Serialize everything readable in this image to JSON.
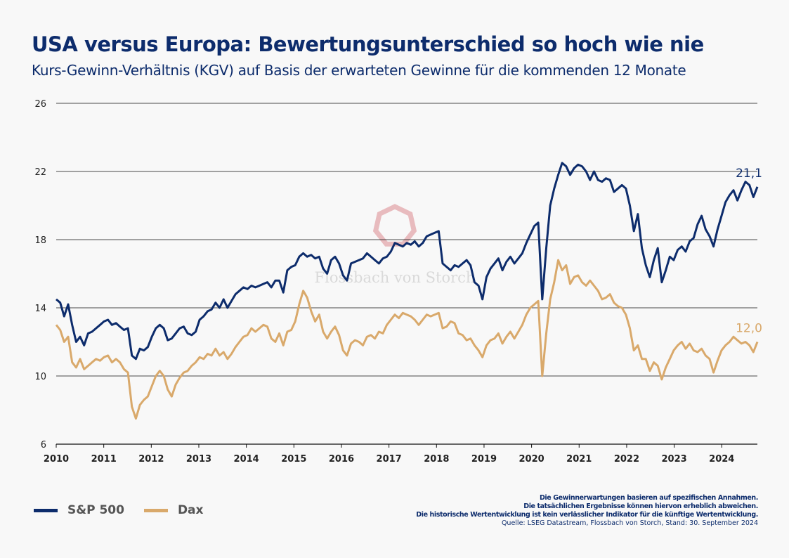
{
  "title": "USA versus Europa: Bewertungsunterschied so hoch wie nie",
  "subtitle": "Kurs-Gewinn-Verhältnis (KGV) auf Basis der erwarteten Gewinne für die kommenden 12 Monate",
  "watermark": "Flossbach von Storch",
  "notes": [
    "Die Gewinnerwartungen basieren auf spezifischen Annahmen.",
    "Die tatsächlichen Ergebnisse können hiervon erheblich abweichen.",
    "Die historische Wertentwicklung ist kein verlässlicher Indikator für die künftige Wertentwicklung."
  ],
  "source": "Quelle: LSEG Datastream, Flossbach von Storch, Stand: 30. September 2024",
  "colors": {
    "sp500": "#0d2c6c",
    "dax": "#d9a96b",
    "watermark": "#e3a7ab"
  },
  "chart_data": {
    "type": "line",
    "title": "USA versus Europa: Bewertungsunterschied so hoch wie nie",
    "xlabel": "",
    "ylabel": "",
    "x_start": "2010-01",
    "x_frequency": "monthly",
    "x_end": "2024-09",
    "xlim": [
      2010,
      2024.75
    ],
    "ylim": [
      6,
      26
    ],
    "yticks": [
      "6",
      "10",
      "14",
      "18",
      "22",
      "26"
    ],
    "ytick_values": [
      6,
      10,
      14,
      18,
      22,
      26
    ],
    "xticks": [
      "2010",
      "2011",
      "2012",
      "2013",
      "2014",
      "2015",
      "2016",
      "2017",
      "2018",
      "2019",
      "2020",
      "2021",
      "2022",
      "2023",
      "2024"
    ],
    "grid": "horizontal",
    "legend_placement": "bottom-left",
    "series": [
      {
        "name": "S&P 500",
        "end_label": "21,1",
        "values": [
          14.5,
          14.3,
          13.5,
          14.2,
          13.0,
          12.0,
          12.3,
          11.8,
          12.5,
          12.6,
          12.8,
          13.0,
          13.2,
          13.3,
          13.0,
          13.1,
          12.9,
          12.7,
          12.8,
          11.2,
          11.0,
          11.6,
          11.5,
          11.7,
          12.3,
          12.8,
          13.0,
          12.8,
          12.1,
          12.2,
          12.5,
          12.8,
          12.9,
          12.5,
          12.4,
          12.6,
          13.3,
          13.5,
          13.8,
          13.9,
          14.3,
          14.0,
          14.5,
          14.0,
          14.4,
          14.8,
          15.0,
          15.2,
          15.1,
          15.3,
          15.2,
          15.3,
          15.4,
          15.5,
          15.2,
          15.6,
          15.6,
          14.9,
          16.2,
          16.4,
          16.5,
          17.0,
          17.2,
          17.0,
          17.1,
          16.9,
          17.0,
          16.3,
          16.0,
          16.8,
          17.0,
          16.6,
          15.9,
          15.6,
          16.6,
          16.7,
          16.8,
          16.9,
          17.2,
          17.0,
          16.8,
          16.6,
          16.9,
          17.0,
          17.3,
          17.8,
          17.7,
          17.6,
          17.8,
          17.7,
          17.9,
          17.6,
          17.8,
          18.2,
          18.3,
          18.4,
          18.5,
          16.6,
          16.4,
          16.2,
          16.5,
          16.4,
          16.6,
          16.8,
          16.5,
          15.5,
          15.3,
          14.5,
          15.8,
          16.3,
          16.6,
          16.9,
          16.2,
          16.7,
          17.0,
          16.6,
          16.9,
          17.2,
          17.8,
          18.3,
          18.8,
          19.0,
          14.5,
          17.5,
          20.0,
          21.0,
          21.8,
          22.5,
          22.3,
          21.8,
          22.2,
          22.4,
          22.3,
          22.0,
          21.5,
          22.0,
          21.5,
          21.4,
          21.6,
          21.5,
          20.8,
          21.0,
          21.2,
          21.0,
          20.0,
          18.5,
          19.5,
          17.5,
          16.5,
          15.8,
          16.8,
          17.5,
          15.5,
          16.2,
          17.0,
          16.8,
          17.4,
          17.6,
          17.3,
          17.9,
          18.1,
          18.9,
          19.4,
          18.6,
          18.2,
          17.6,
          18.6,
          19.4,
          20.2,
          20.6,
          20.9,
          20.3,
          20.9,
          21.4,
          21.2,
          20.5,
          21.1
        ]
      },
      {
        "name": "Dax",
        "end_label": "12,0",
        "values": [
          13.0,
          12.7,
          12.0,
          12.3,
          10.8,
          10.5,
          11.0,
          10.4,
          10.6,
          10.8,
          11.0,
          10.9,
          11.1,
          11.2,
          10.8,
          11.0,
          10.8,
          10.4,
          10.2,
          8.2,
          7.5,
          8.3,
          8.6,
          8.8,
          9.4,
          10.0,
          10.3,
          10.0,
          9.2,
          8.8,
          9.5,
          9.9,
          10.2,
          10.3,
          10.6,
          10.8,
          11.1,
          11.0,
          11.3,
          11.2,
          11.6,
          11.2,
          11.4,
          11.0,
          11.3,
          11.7,
          12.0,
          12.3,
          12.4,
          12.8,
          12.6,
          12.8,
          13.0,
          12.9,
          12.2,
          12.0,
          12.5,
          11.8,
          12.6,
          12.7,
          13.2,
          14.2,
          15.0,
          14.6,
          13.8,
          13.2,
          13.6,
          12.6,
          12.2,
          12.6,
          12.9,
          12.4,
          11.5,
          11.2,
          11.9,
          12.1,
          12.0,
          11.8,
          12.3,
          12.4,
          12.2,
          12.6,
          12.5,
          13.0,
          13.3,
          13.6,
          13.4,
          13.7,
          13.6,
          13.5,
          13.3,
          13.0,
          13.3,
          13.6,
          13.5,
          13.6,
          13.7,
          12.8,
          12.9,
          13.2,
          13.1,
          12.5,
          12.4,
          12.1,
          12.2,
          11.8,
          11.5,
          11.1,
          11.8,
          12.1,
          12.2,
          12.5,
          11.9,
          12.3,
          12.6,
          12.2,
          12.6,
          13.0,
          13.6,
          14.0,
          14.2,
          14.4,
          10.0,
          12.5,
          14.5,
          15.5,
          16.8,
          16.2,
          16.5,
          15.4,
          15.8,
          15.9,
          15.5,
          15.3,
          15.6,
          15.3,
          15.0,
          14.5,
          14.6,
          14.8,
          14.3,
          14.1,
          14.0,
          13.6,
          12.8,
          11.5,
          11.8,
          11.0,
          11.0,
          10.3,
          10.8,
          10.6,
          9.8,
          10.5,
          11.0,
          11.5,
          11.8,
          12.0,
          11.6,
          11.9,
          11.5,
          11.4,
          11.6,
          11.2,
          11.0,
          10.2,
          10.9,
          11.5,
          11.8,
          12.0,
          12.3,
          12.1,
          11.9,
          12.0,
          11.8,
          11.4,
          12.0
        ]
      }
    ]
  }
}
